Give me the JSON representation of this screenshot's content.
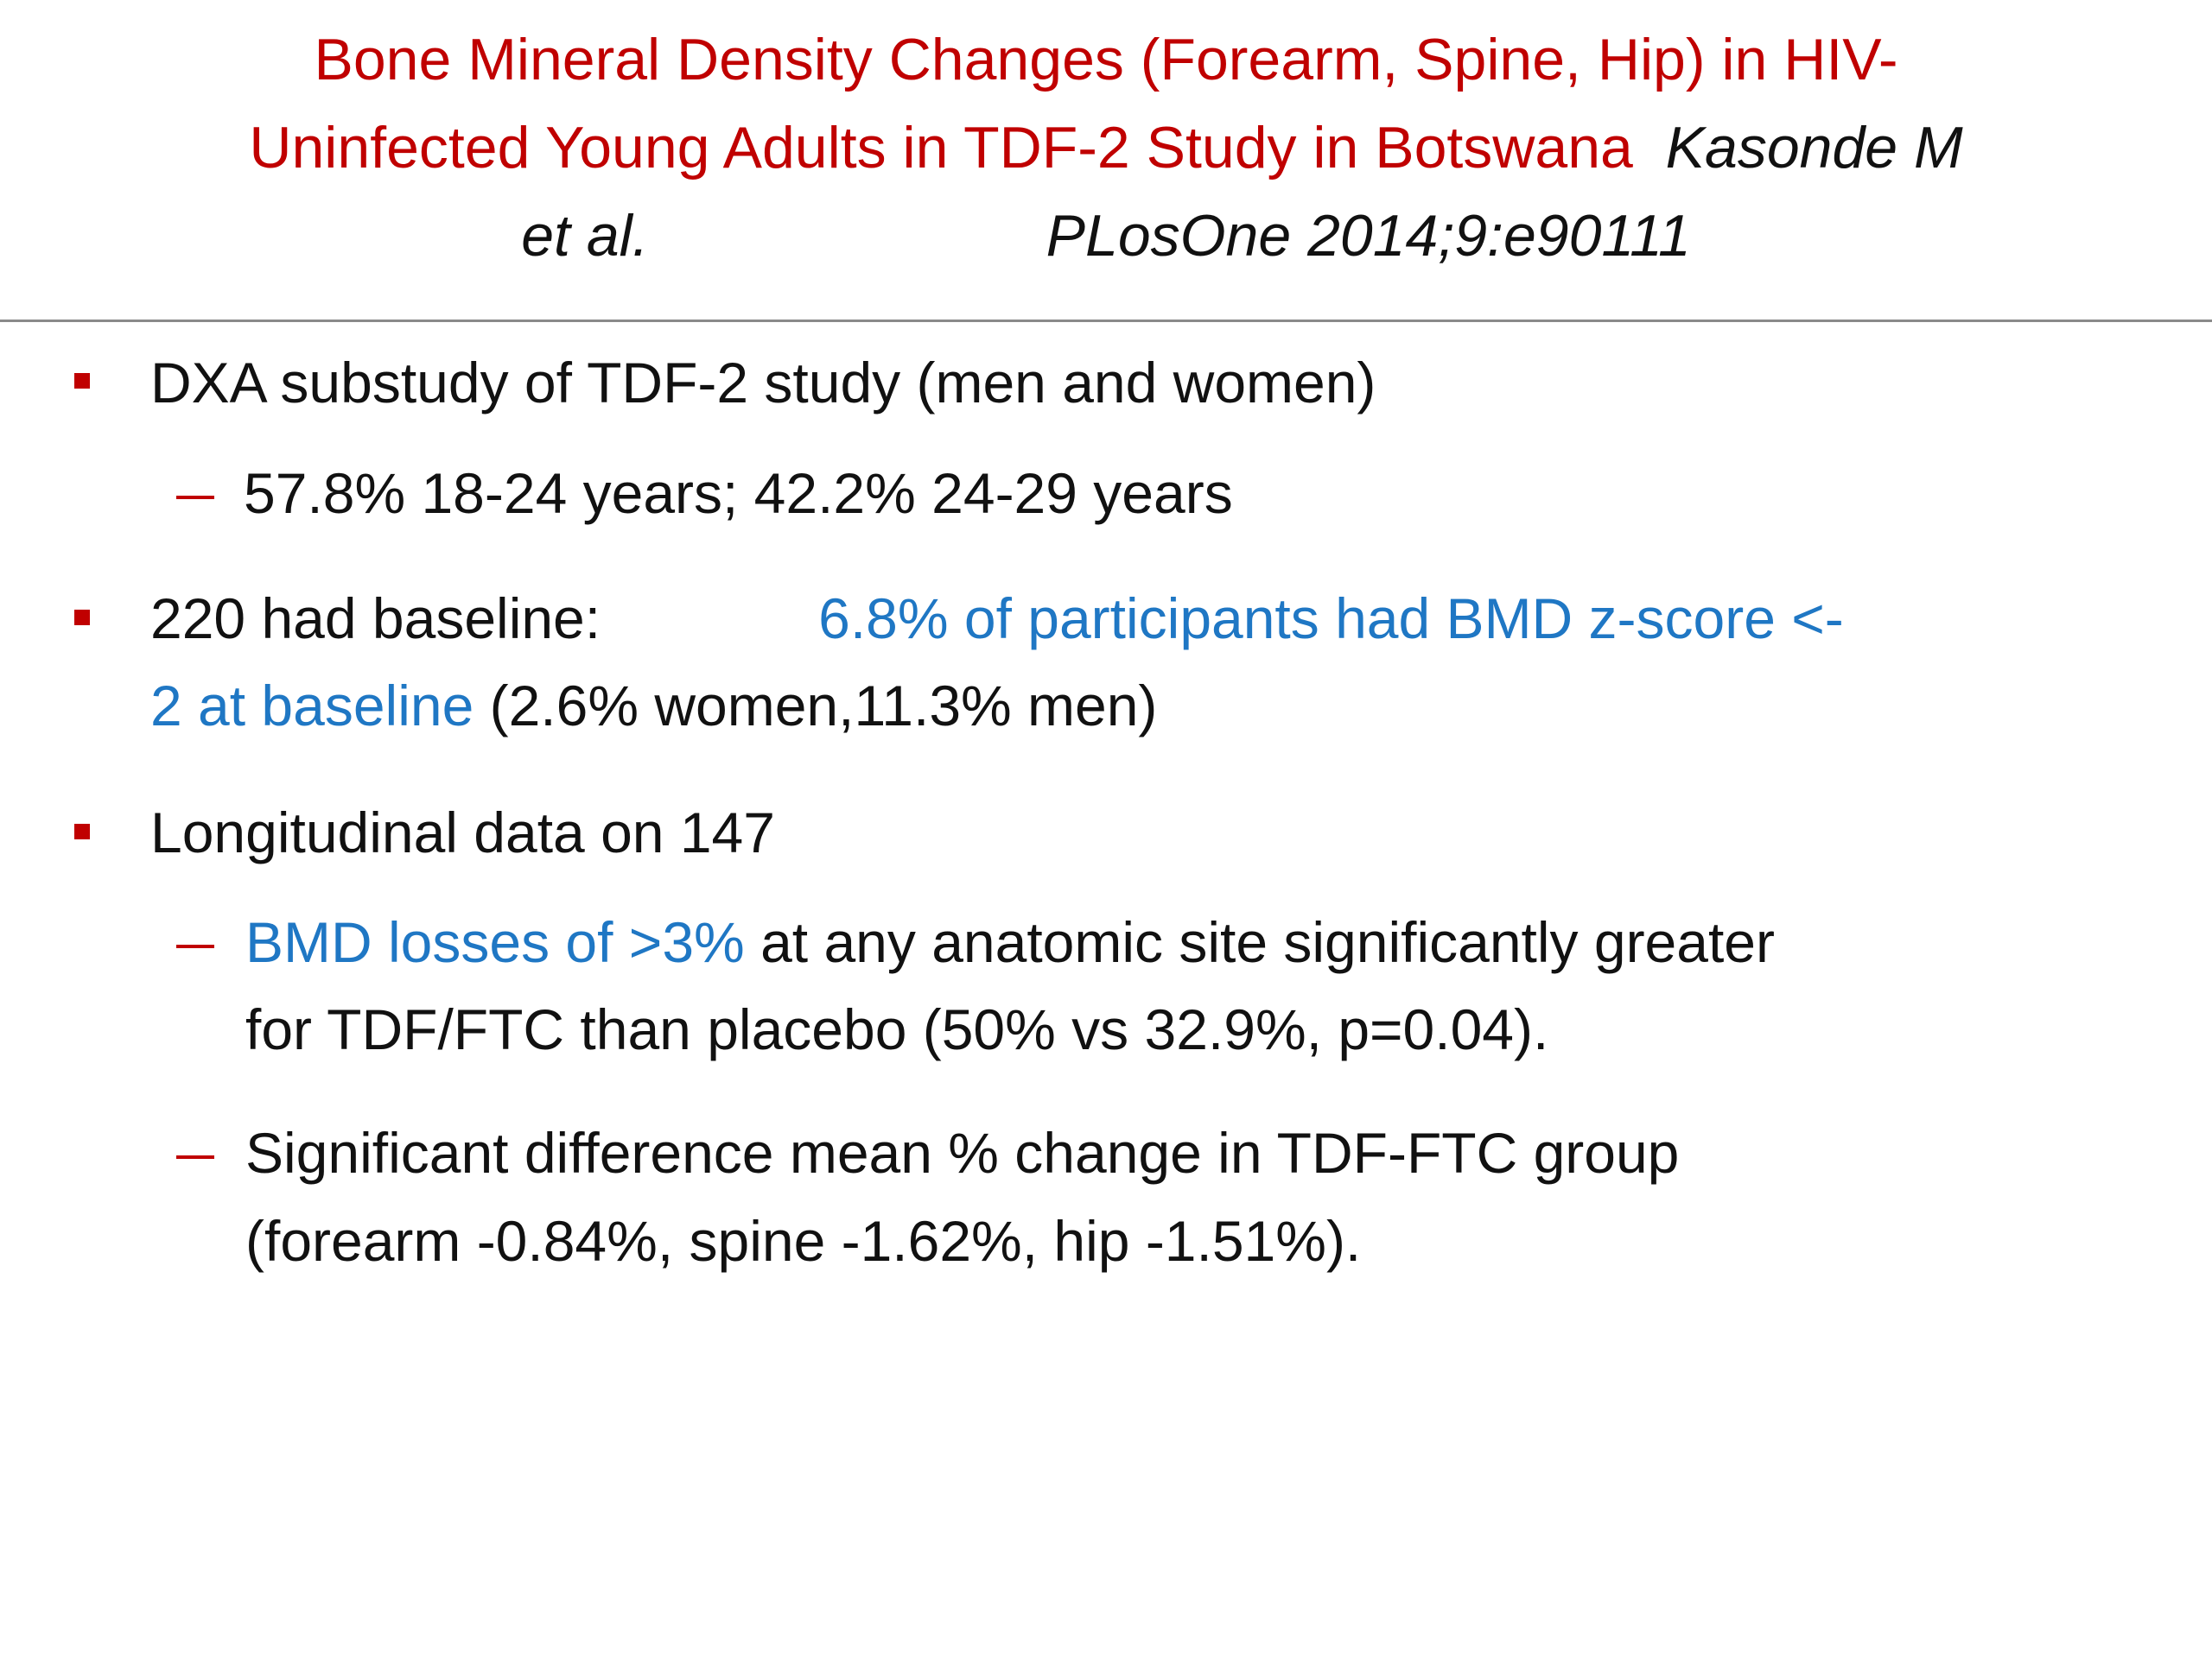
{
  "title": {
    "line1": "Bone Mineral Density Changes (Forearm, Spine, Hip) in  HIV-",
    "line2": "Uninfected Young Adults in TDF-2 Study in Botswana",
    "author": "Kasonde M",
    "etal": "et al.",
    "journal": "PLosOne 2014;9:e90111"
  },
  "bullets": [
    {
      "text": "DXA substudy of TDF-2 study (men and  women)",
      "sub": [
        {
          "text": "57.8% 18-24 years; 42.2% 24-29 years"
        }
      ]
    },
    {
      "lead": "220 had baseline:",
      "blue1": "6.8% of participants had BMD  z-score <-",
      "blue2": "2 at baseline",
      "tail": " (2.6% women,11.3% men)"
    },
    {
      "text": "Longitudinal data on 147",
      "sub": [
        {
          "blue": "BMD losses of >3%",
          "rest1": " at any anatomic site significantly  greater",
          "rest2": "for TDF/FTC than placebo (50% vs 32.9%,  p=0.04)."
        },
        {
          "line1": "Significant difference mean % change in TDF-FTC  group",
          "line2": "(forearm -0.84%, spine -1.62%, hip  -1.51%)."
        }
      ]
    }
  ],
  "colors": {
    "title": "#c00000",
    "bullet": "#c00000",
    "highlight": "#1f77c4",
    "text": "#111111",
    "rule": "#8a8a8a"
  }
}
